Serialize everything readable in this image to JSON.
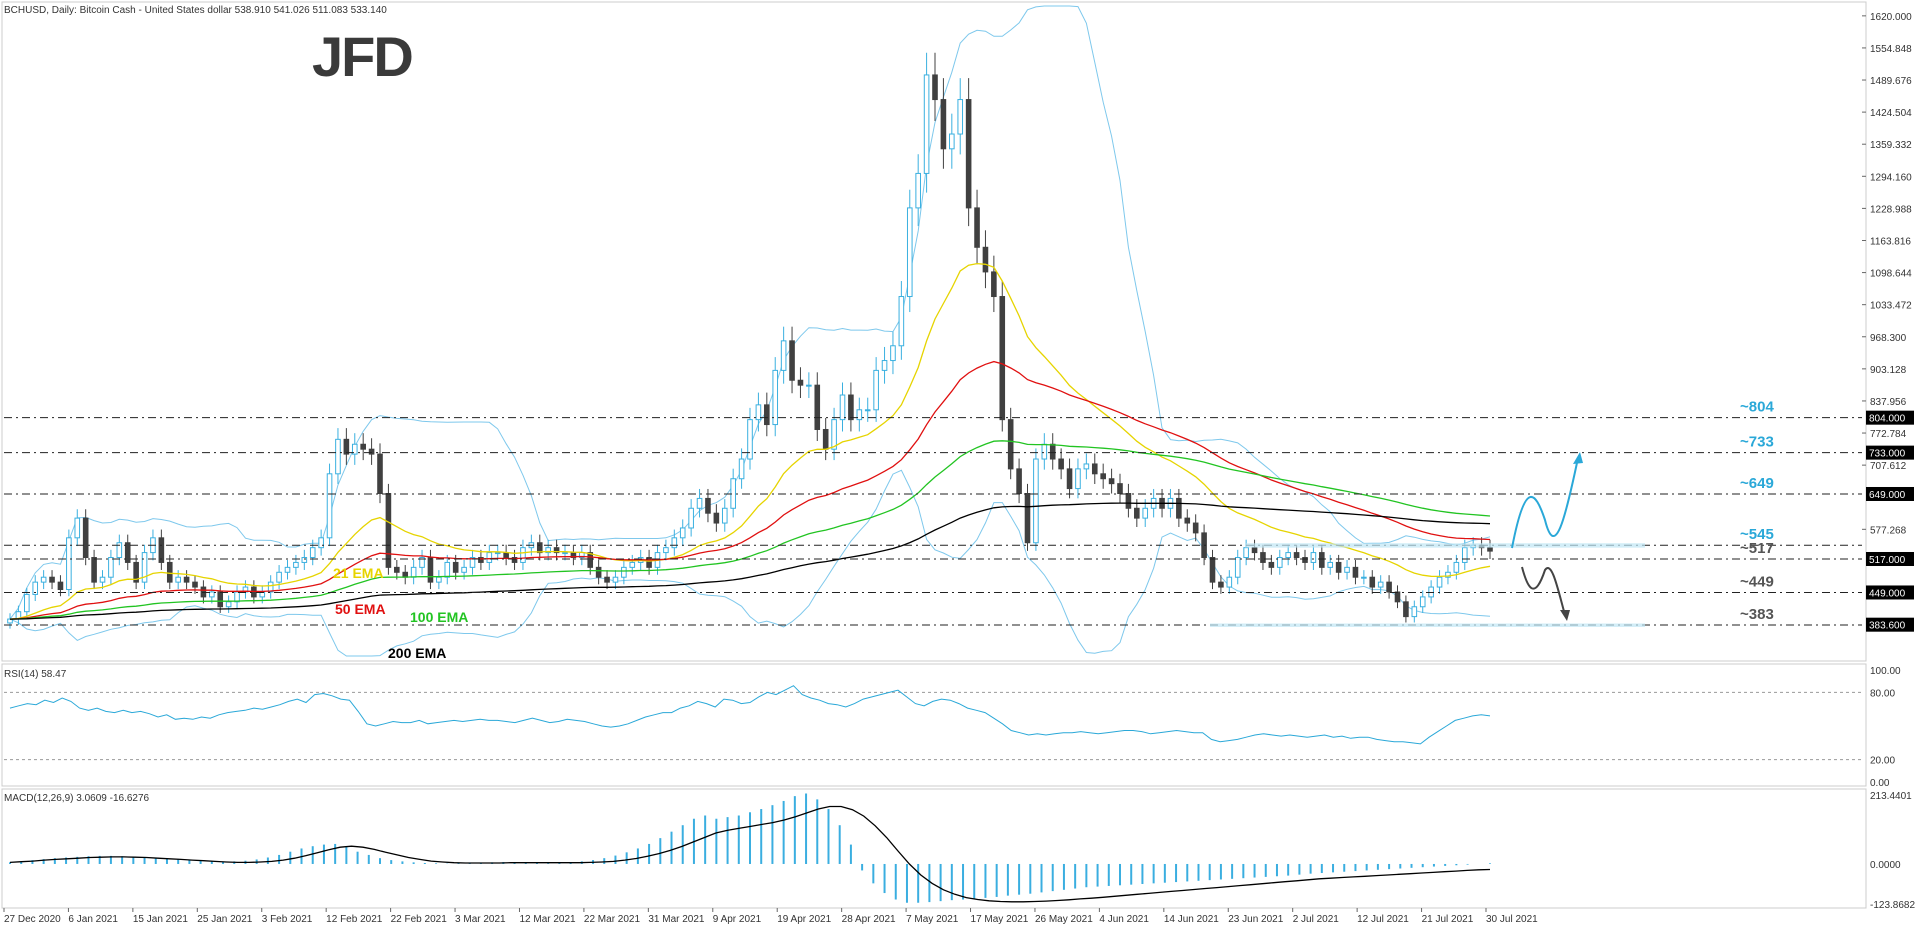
{
  "header": {
    "symbol_info": "BCHUSD, Daily:  Bitcoin Cash - United States dollar  538.910 541.026 511.083 533.140",
    "logo": "JFD"
  },
  "colors": {
    "ema21": "#e6d400",
    "ema50": "#e01010",
    "ema100": "#22c422",
    "ema200": "#000000",
    "bollinger": "#7ec8ec",
    "level_label": "#2aa8d8",
    "support_label": "#555555",
    "rsi_line": "#2aa8d8",
    "macd_hist": "#3aaee0",
    "macd_signal": "#000000",
    "bull_candle": "#3ab0e0",
    "bear_candle": "#404040"
  },
  "chart_data": [
    {
      "type": "candlestick",
      "title": "BCHUSD, Daily: Bitcoin Cash - United States dollar",
      "ylim": [
        320,
        1640
      ],
      "y_ticks": [
        "1620.000",
        "1554.848",
        "1489.676",
        "1424.504",
        "1359.332",
        "1294.160",
        "1228.988",
        "1163.816",
        "1098.644",
        "1033.472",
        "968.300",
        "903.128",
        "837.956",
        "772.784",
        "707.612",
        "577.268"
      ],
      "x_ticks": [
        "27 Dec 2020",
        "6 Jan 2021",
        "15 Jan 2021",
        "25 Jan 2021",
        "3 Feb 2021",
        "12 Feb 2021",
        "22 Feb 2021",
        "3 Mar 2021",
        "12 Mar 2021",
        "22 Mar 2021",
        "31 Mar 2021",
        "9 Apr 2021",
        "19 Apr 2021",
        "28 Apr 2021",
        "7 May 2021",
        "17 May 2021",
        "26 May 2021",
        "4 Jun 2021",
        "14 Jun 2021",
        "23 Jun 2021",
        "2 Jul 2021",
        "12 Jul 2021",
        "21 Jul 2021",
        "30 Jul 2021"
      ],
      "price_boxes": [
        "804.000",
        "733.000",
        "649.000",
        "517.000",
        "449.000",
        "383.600"
      ],
      "level_labels": [
        {
          "label": "~804",
          "value": 804,
          "style": "resistance"
        },
        {
          "label": "~733",
          "value": 733,
          "style": "resistance"
        },
        {
          "label": "~649",
          "value": 649,
          "style": "resistance"
        },
        {
          "label": "~545",
          "value": 545,
          "style": "resistance"
        },
        {
          "label": "~517",
          "value": 517,
          "style": "support"
        },
        {
          "label": "~449",
          "value": 449,
          "style": "support"
        },
        {
          "label": "~383",
          "value": 383,
          "style": "support"
        }
      ],
      "ema_labels": [
        "21 EMA",
        "50 EMA",
        "100 EMA",
        "200 EMA"
      ],
      "closes": [
        395,
        410,
        445,
        470,
        480,
        470,
        455,
        560,
        600,
        520,
        470,
        480,
        520,
        550,
        510,
        470,
        530,
        560,
        510,
        470,
        480,
        470,
        460,
        440,
        450,
        420,
        430,
        450,
        460,
        440,
        450,
        470,
        490,
        500,
        510,
        520,
        540,
        560,
        690,
        760,
        730,
        750,
        740,
        730,
        650,
        500,
        490,
        480,
        500,
        520,
        470,
        480,
        510,
        490,
        500,
        520,
        510,
        530,
        530,
        520,
        510,
        540,
        550,
        530,
        540,
        530,
        530,
        520,
        530,
        500,
        480,
        470,
        480,
        500,
        510,
        520,
        500,
        530,
        540,
        560,
        580,
        620,
        640,
        610,
        590,
        620,
        680,
        720,
        800,
        830,
        790,
        900,
        960,
        880,
        870,
        870,
        780,
        740,
        800,
        850,
        800,
        820,
        820,
        900,
        920,
        950,
        1050,
        1230,
        1300,
        1500,
        1450,
        1350,
        1380,
        1450,
        1230,
        1150,
        1100,
        1050,
        800,
        700,
        650,
        550,
        720,
        750,
        720,
        700,
        660,
        700,
        710,
        690,
        680,
        670,
        650,
        620,
        600,
        620,
        640,
        620,
        640,
        600,
        590,
        570,
        520,
        470,
        460,
        480,
        520,
        540,
        530,
        510,
        500,
        520,
        530,
        520,
        510,
        530,
        500,
        510,
        490,
        500,
        480,
        480,
        460,
        470,
        450,
        430,
        400,
        420,
        440,
        460,
        480,
        490,
        510,
        540,
        545,
        540,
        533
      ],
      "rsi_ticks": [
        "100.00",
        "80.00",
        "20.00",
        "0.00"
      ],
      "rsi_label": "RSI(14) 58.47",
      "rsi_values": [
        66,
        68,
        70,
        69,
        73,
        71,
        75,
        72,
        66,
        64,
        66,
        63,
        62,
        64,
        62,
        63,
        61,
        58,
        60,
        56,
        57,
        56,
        58,
        57,
        60,
        62,
        63,
        64,
        66,
        65,
        67,
        69,
        72,
        74,
        71,
        78,
        79,
        77,
        74,
        73,
        63,
        52,
        50,
        52,
        54,
        53,
        53,
        55,
        52,
        53,
        54,
        55,
        54,
        55,
        56,
        55,
        55,
        54,
        53,
        55,
        57,
        55,
        53,
        54,
        56,
        55,
        54,
        52,
        50,
        49,
        50,
        52,
        55,
        58,
        60,
        62,
        62,
        66,
        68,
        72,
        70,
        67,
        74,
        73,
        70,
        71,
        76,
        80,
        78,
        82,
        86,
        78,
        75,
        73,
        70,
        69,
        67,
        70,
        74,
        76,
        78,
        80,
        82,
        76,
        70,
        68,
        72,
        74,
        73,
        70,
        66,
        64,
        62,
        57,
        52,
        46,
        44,
        42,
        43,
        42,
        43,
        44,
        44,
        45,
        44,
        43,
        44,
        45,
        46,
        46,
        45,
        43,
        44,
        45,
        46,
        45,
        44,
        44,
        38,
        36,
        37,
        38,
        40,
        42,
        43,
        42,
        41,
        42,
        41,
        40,
        41,
        42,
        40,
        41,
        39,
        40,
        40,
        38,
        37,
        36,
        36,
        35,
        34,
        40,
        45,
        50,
        55,
        57,
        59,
        60,
        59
      ],
      "macd_label": "MACD(12,26,9) 3.0609 -16.6276",
      "macd_ticks": [
        "213.4401",
        "0.0000",
        "-123.8682"
      ],
      "macd_hist": [
        5,
        8,
        12,
        15,
        18,
        20,
        22,
        24,
        25,
        25,
        24,
        22,
        20,
        18,
        16,
        14,
        12,
        10,
        8,
        7,
        8,
        10,
        14,
        20,
        28,
        38,
        48,
        55,
        60,
        62,
        55,
        38,
        28,
        18,
        12,
        8,
        5,
        3,
        2,
        1,
        2,
        3,
        4,
        5,
        6,
        5,
        4,
        3,
        2,
        3,
        5,
        8,
        12,
        18,
        26,
        36,
        48,
        62,
        80,
        100,
        120,
        140,
        150,
        140,
        145,
        150,
        160,
        170,
        182,
        195,
        210,
        218,
        200,
        170,
        120,
        60,
        -20,
        -60,
        -90,
        -110,
        -120,
        -120,
        -118,
        -115,
        -112,
        -110,
        -108,
        -105,
        -102,
        -98,
        -95,
        -92,
        -88,
        -84,
        -80,
        -76,
        -72,
        -70,
        -68,
        -66,
        -64,
        -62,
        -60,
        -58,
        -56,
        -54,
        -52,
        -50,
        -48,
        -46,
        -44,
        -42,
        -40,
        -38,
        -36,
        -33,
        -30,
        -28,
        -26,
        -24,
        -22,
        -20,
        -18,
        -16,
        -14,
        -12,
        -10,
        -8,
        -6,
        -4,
        -2,
        0,
        2
      ],
      "macd_signal": [
        5,
        7,
        9,
        12,
        14,
        16,
        18,
        20,
        21,
        22,
        22,
        21,
        20,
        18,
        16,
        14,
        12,
        10,
        8,
        6,
        5,
        5,
        6,
        8,
        12,
        18,
        26,
        35,
        44,
        52,
        55,
        52,
        45,
        36,
        28,
        20,
        14,
        9,
        6,
        4,
        3,
        3,
        3,
        3,
        4,
        4,
        4,
        4,
        4,
        4,
        4,
        5,
        6,
        8,
        12,
        17,
        24,
        32,
        42,
        54,
        68,
        82,
        96,
        104,
        110,
        116,
        122,
        128,
        136,
        146,
        158,
        170,
        178,
        178,
        168,
        148,
        118,
        82,
        40,
        0,
        -34,
        -60,
        -80,
        -94,
        -104,
        -110,
        -114,
        -116,
        -117,
        -117,
        -116,
        -115,
        -113,
        -111,
        -108,
        -106,
        -103,
        -100,
        -97,
        -94,
        -91,
        -88,
        -85,
        -82,
        -79,
        -76,
        -73,
        -70,
        -67,
        -64,
        -61,
        -58,
        -55,
        -52,
        -49,
        -46,
        -44,
        -42,
        -40,
        -38,
        -36,
        -34,
        -32,
        -30,
        -28,
        -26,
        -24,
        -22,
        -20,
        -18,
        -17
      ]
    }
  ]
}
